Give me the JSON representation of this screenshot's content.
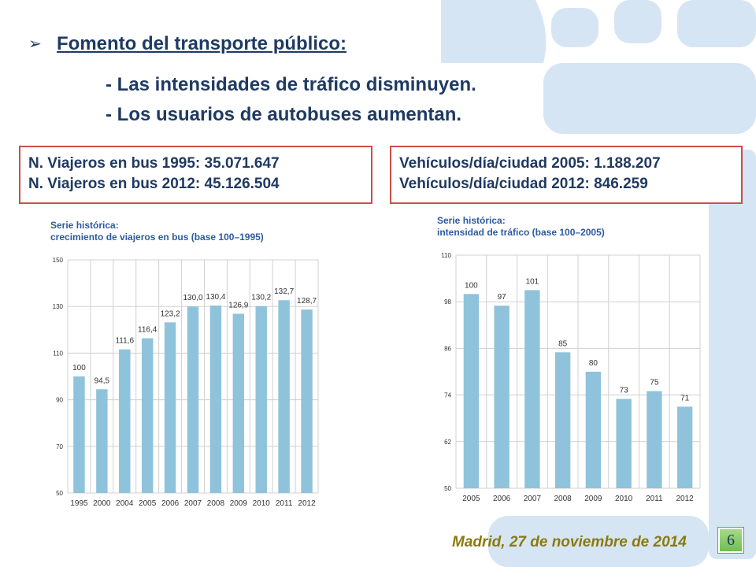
{
  "slide": {
    "bullet": "➢",
    "title": "Fomento del transporte público",
    "title_colon": ":",
    "line1": "- Las intensidades de tráfico disminuyen.",
    "line2": "- Los usuarios de autobuses aumentan.",
    "box_left": {
      "line1": "N. Viajeros en bus 1995:  35.071.647",
      "line2": "N. Viajeros en bus 2012: 45.126.504"
    },
    "box_right": {
      "line1": "Vehículos/día/ciudad 2005: 1.188.207",
      "line2": "Vehículos/día/ciudad 2012: 846.259"
    },
    "footer_date": "Madrid, 27 de noviembre de 2014",
    "page_number": "6",
    "colors": {
      "title_text": "#1f3a62",
      "box_border": "#c9504a",
      "bar": "#8fc3dc",
      "chart_title": "#2c5aa0",
      "footer": "#8a7a10",
      "badge": "#7cc35a",
      "background_decoration": "#d6e5f3"
    }
  },
  "chart_data": [
    {
      "type": "bar",
      "title": "Serie histórica:",
      "subtitle": "crecimiento de viajeros en bus (base 100–1995)",
      "categories": [
        "1995",
        "2000",
        "2004",
        "2005",
        "2006",
        "2007",
        "2008",
        "2009",
        "2010",
        "2011",
        "2012"
      ],
      "values": [
        100,
        94.5,
        111.6,
        116.4,
        123.2,
        130.0,
        130.4,
        126.9,
        130.2,
        132.7,
        128.7
      ],
      "data_labels": [
        "100",
        "94,5",
        "111,6",
        "116,4",
        "123,2",
        "130,0",
        "130,4",
        "126,9",
        "130,2",
        "132,7",
        "128,7"
      ],
      "ylim": [
        50,
        150
      ],
      "yticks": [
        50,
        70,
        90,
        110,
        130,
        150
      ],
      "grid": true,
      "xlabel": "",
      "ylabel": ""
    },
    {
      "type": "bar",
      "title": "Serie histórica:",
      "subtitle": "intensidad de tráfico (base 100–2005)",
      "categories": [
        "2005",
        "2006",
        "2007",
        "2008",
        "2009",
        "2010",
        "2011",
        "2012"
      ],
      "values": [
        100,
        97,
        101,
        85,
        80,
        73,
        75,
        71
      ],
      "data_labels": [
        "100",
        "97",
        "101",
        "85",
        "80",
        "73",
        "75",
        "71"
      ],
      "ylim": [
        50,
        110
      ],
      "yticks": [
        50,
        62,
        74,
        86,
        98,
        110
      ],
      "grid": true,
      "xlabel": "",
      "ylabel": ""
    }
  ]
}
